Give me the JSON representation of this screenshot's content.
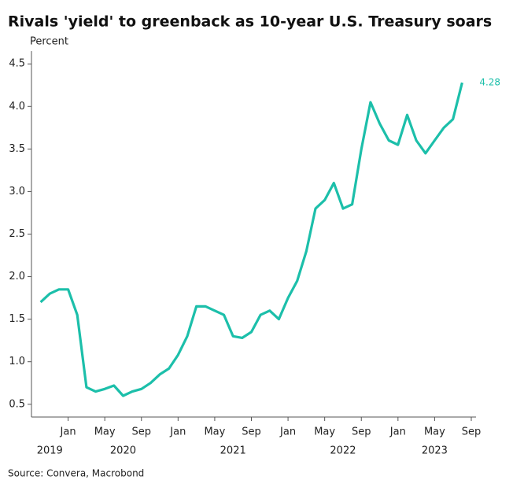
{
  "chart_data": {
    "type": "line",
    "title": "Rivals 'yield' to greenback as 10-year U.S. Treasury soars",
    "y_axis_label": "Percent",
    "source": "Source: Convera, Macrobond",
    "x": [
      "2019-10",
      "2019-11",
      "2019-12",
      "2020-01",
      "2020-02",
      "2020-03",
      "2020-04",
      "2020-05",
      "2020-06",
      "2020-07",
      "2020-08",
      "2020-09",
      "2020-10",
      "2020-11",
      "2020-12",
      "2021-01",
      "2021-02",
      "2021-03",
      "2021-04",
      "2021-05",
      "2021-06",
      "2021-07",
      "2021-08",
      "2021-09",
      "2021-10",
      "2021-11",
      "2021-12",
      "2022-01",
      "2022-02",
      "2022-03",
      "2022-04",
      "2022-05",
      "2022-06",
      "2022-07",
      "2022-08",
      "2022-09",
      "2022-10",
      "2022-11",
      "2022-12",
      "2023-01",
      "2023-02",
      "2023-03",
      "2023-04",
      "2023-05",
      "2023-06",
      "2023-07",
      "2023-08"
    ],
    "values": [
      1.7,
      1.8,
      1.85,
      1.85,
      1.55,
      0.7,
      0.65,
      0.68,
      0.72,
      0.6,
      0.65,
      0.68,
      0.75,
      0.85,
      0.92,
      1.08,
      1.3,
      1.65,
      1.65,
      1.6,
      1.55,
      1.3,
      1.28,
      1.35,
      1.55,
      1.6,
      1.5,
      1.75,
      1.95,
      2.3,
      2.8,
      2.9,
      3.1,
      2.8,
      2.85,
      3.5,
      4.05,
      3.8,
      3.6,
      3.55,
      3.9,
      3.6,
      3.45,
      3.6,
      3.75,
      3.85,
      4.28
    ],
    "color": "#1cbfaa",
    "xlim": [
      "2019-09",
      "2023-09"
    ],
    "xticks": [
      {
        "value": "2020-01",
        "label": "Jan"
      },
      {
        "value": "2020-05",
        "label": "May"
      },
      {
        "value": "2020-09",
        "label": "Sep"
      },
      {
        "value": "2021-01",
        "label": "Jan"
      },
      {
        "value": "2021-05",
        "label": "May"
      },
      {
        "value": "2021-09",
        "label": "Sep"
      },
      {
        "value": "2022-01",
        "label": "Jan"
      },
      {
        "value": "2022-05",
        "label": "May"
      },
      {
        "value": "2022-09",
        "label": "Sep"
      },
      {
        "value": "2023-01",
        "label": "Jan"
      },
      {
        "value": "2023-05",
        "label": "May"
      },
      {
        "value": "2023-09",
        "label": "Sep"
      }
    ],
    "year_labels": [
      {
        "value": "2019-11",
        "label": "2019"
      },
      {
        "value": "2020-07",
        "label": "2020"
      },
      {
        "value": "2021-07",
        "label": "2021"
      },
      {
        "value": "2022-07",
        "label": "2022"
      },
      {
        "value": "2023-05",
        "label": "2023"
      }
    ],
    "ylim": [
      0.35,
      4.65
    ],
    "yticks": [
      0.5,
      {
        "value": 1,
        "label": "1.0"
      },
      1.5,
      {
        "value": 2,
        "label": "2.0"
      },
      2.5,
      {
        "value": 3,
        "label": "3.0"
      },
      3.5,
      {
        "value": 4,
        "label": "4.0"
      },
      4.5
    ],
    "grid": false
  }
}
